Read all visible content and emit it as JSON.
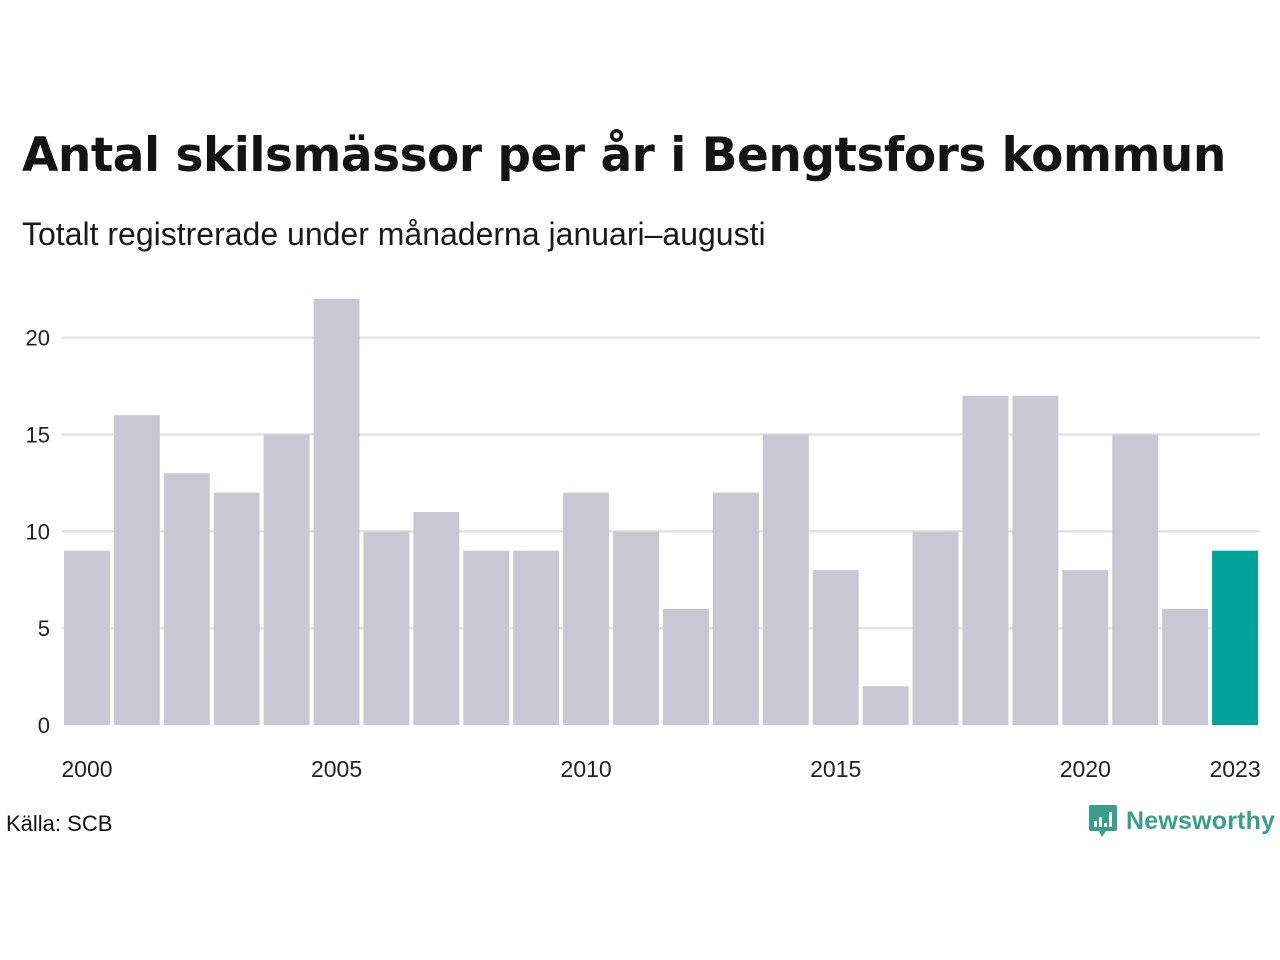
{
  "title": "Antal skilsmässor per år i Bengtsfors kommun",
  "subtitle": "Totalt registrerade under månaderna januari–augusti",
  "source": "Källa: SCB",
  "brand": {
    "name": "Newsworthy",
    "icon": "newsworthy-logo-icon",
    "color": "#3a9e8f"
  },
  "colors": {
    "bar": "#c8c7d3",
    "highlight": "#00a39a",
    "grid": "#e3e3e3"
  },
  "chart_data": {
    "type": "bar",
    "categories": [
      "2000",
      "2001",
      "2002",
      "2003",
      "2004",
      "2005",
      "2006",
      "2007",
      "2008",
      "2009",
      "2010",
      "2011",
      "2012",
      "2013",
      "2014",
      "2015",
      "2016",
      "2017",
      "2018",
      "2019",
      "2020",
      "2021",
      "2022",
      "2023"
    ],
    "values": [
      9,
      16,
      13,
      12,
      15,
      22,
      10,
      11,
      9,
      9,
      12,
      10,
      6,
      12,
      15,
      8,
      2,
      10,
      17,
      17,
      8,
      15,
      6,
      9
    ],
    "highlight_category": "2023",
    "x_tick_labels": [
      "2000",
      "2005",
      "2010",
      "2015",
      "2020",
      "2023"
    ],
    "y_ticks": [
      0,
      5,
      10,
      15,
      20
    ],
    "ylim": [
      0,
      22
    ],
    "grid": true,
    "legend": "none"
  }
}
